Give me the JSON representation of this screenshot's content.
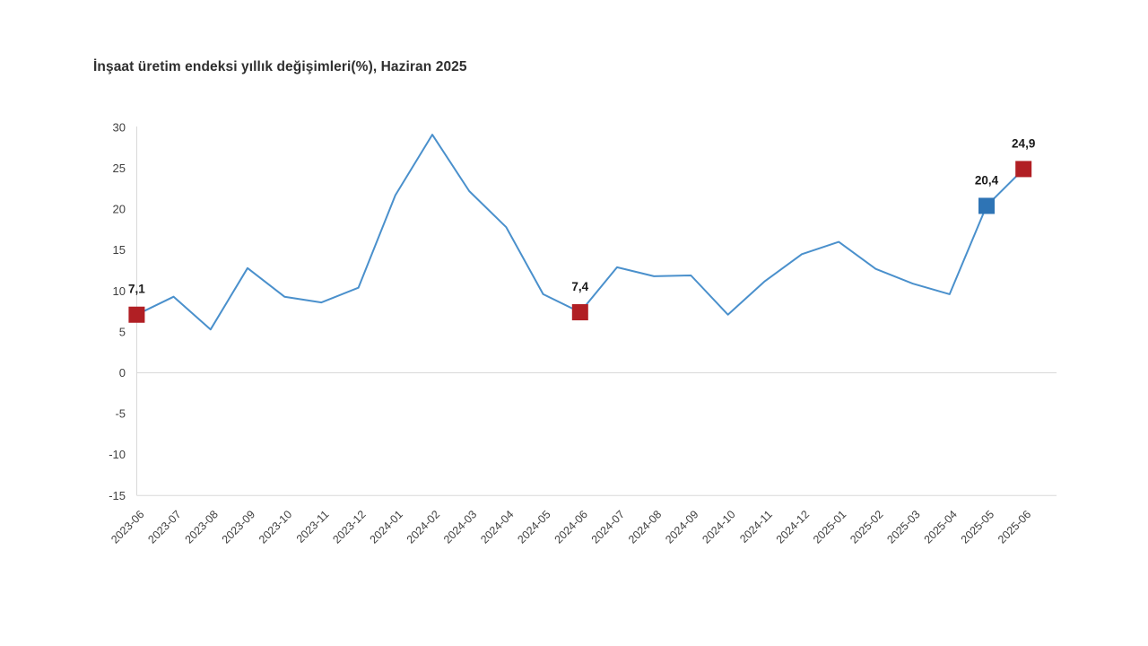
{
  "page": {
    "background": "#ffffff"
  },
  "chart": {
    "title": "İnşaat üretim endeksi yıllık değişimleri(%), Haziran 2025"
  },
  "chart_data": {
    "type": "line",
    "title": "İnşaat üretim endeksi yıllık değişimleri(%), Haziran 2025",
    "categories": [
      "2023-06",
      "2023-07",
      "2023-08",
      "2023-09",
      "2023-10",
      "2023-11",
      "2023-12",
      "2024-01",
      "2024-02",
      "2024-03",
      "2024-04",
      "2024-05",
      "2024-06",
      "2024-07",
      "2024-08",
      "2024-09",
      "2024-10",
      "2024-11",
      "2024-12",
      "2025-01",
      "2025-02",
      "2025-03",
      "2025-04",
      "2025-05",
      "2025-06"
    ],
    "values": [
      7.1,
      9.3,
      5.3,
      12.8,
      9.3,
      8.6,
      10.4,
      21.7,
      29.1,
      22.2,
      17.8,
      9.6,
      7.4,
      12.9,
      11.8,
      11.9,
      7.1,
      11.2,
      14.5,
      16.0,
      12.7,
      10.9,
      9.6,
      20.4,
      24.9
    ],
    "xlabel": "",
    "ylabel": "",
    "ylim": [
      -15,
      30
    ],
    "yticks": [
      30,
      25,
      20,
      15,
      10,
      5,
      0,
      -5,
      -10,
      -15
    ],
    "grid_values": [
      0,
      -15
    ],
    "grid_on": true,
    "legend": "none",
    "decimal_separator": ",",
    "annotated_points": [
      {
        "category": "2023-06",
        "index": 0,
        "label": "7,1",
        "marker": "red-square"
      },
      {
        "category": "2024-06",
        "index": 12,
        "label": "7,4",
        "marker": "red-square"
      },
      {
        "category": "2025-05",
        "index": 23,
        "label": "20,4",
        "marker": "blue-square"
      },
      {
        "category": "2025-06",
        "index": 24,
        "label": "24,9",
        "marker": "red-square"
      }
    ],
    "colors": {
      "line": "#4a90cc",
      "red_marker": "#b11f24",
      "blue_marker": "#2e74b5",
      "grid": "#d9d9d9",
      "axis_text": "#404040",
      "label_text": "#1a1a1a"
    }
  }
}
